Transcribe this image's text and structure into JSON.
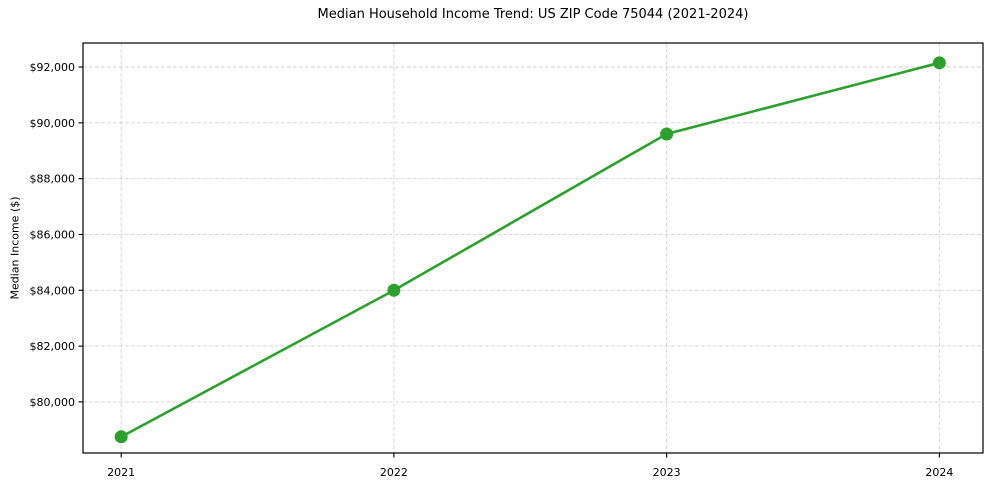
{
  "chart_data": {
    "type": "line",
    "title": "Median Household Income Trend: US ZIP Code 75044 (2021-2024)",
    "xlabel": "",
    "ylabel": "Median Income ($)",
    "x": [
      2021,
      2022,
      2023,
      2024
    ],
    "y": [
      78750,
      84000,
      89600,
      92150
    ],
    "xticks": {
      "values": [
        2021,
        2022,
        2023,
        2024
      ],
      "labels": [
        "2021",
        "2022",
        "2023",
        "2024"
      ]
    },
    "yticks": {
      "values": [
        80000,
        82000,
        84000,
        86000,
        88000,
        90000,
        92000
      ],
      "labels": [
        "$80,000",
        "$82,000",
        "$84,000",
        "$86,000",
        "$88,000",
        "$90,000",
        "$92,000"
      ]
    },
    "xlim": [
      2020.86,
      2024.16
    ],
    "ylim": [
      78170,
      92860
    ],
    "grid": true,
    "grid_style": "dashed",
    "legend": "none",
    "colors": {
      "line": "#2ca02c",
      "marker": "#2ca02c",
      "grid": "#d2d2d2",
      "axis": "#000000",
      "text": "#000000",
      "background": "#ffffff"
    },
    "line_width": 2.6,
    "marker_radius": 6.5
  }
}
